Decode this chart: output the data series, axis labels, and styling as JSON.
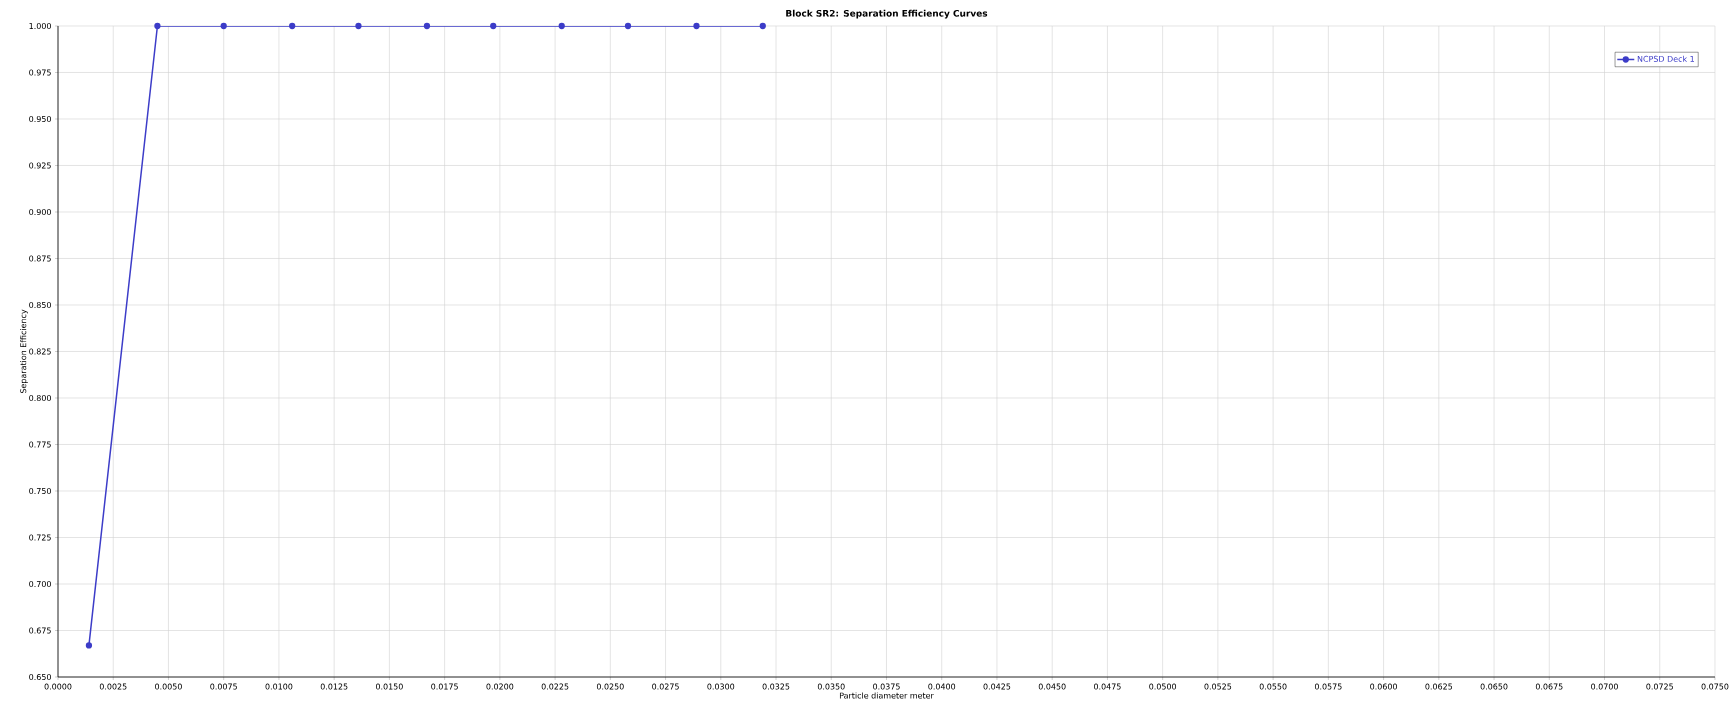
{
  "chart_data": {
    "type": "line",
    "title": "Block SR2: Separation Efficiency Curves",
    "xlabel": "Particle diameter meter",
    "ylabel": "Separation Efficiency",
    "x": [
      0.0014,
      0.0045,
      0.0075,
      0.0106,
      0.0136,
      0.0167,
      0.0197,
      0.0228,
      0.0258,
      0.0289,
      0.0319
    ],
    "series": [
      {
        "name": "NCPSD Deck 1",
        "color": "#3c3cc8",
        "values": [
          0.667,
          1.0,
          1.0,
          1.0,
          1.0,
          1.0,
          1.0,
          1.0,
          1.0,
          1.0,
          1.0
        ]
      }
    ],
    "xlim": [
      0,
      0.075
    ],
    "ylim": [
      0.65,
      1.0
    ],
    "xticks": [
      {
        "value": 0,
        "label": "0.0000"
      },
      {
        "value": 0.0025,
        "label": "0.0025"
      },
      {
        "value": 0.005,
        "label": "0.0050"
      },
      {
        "value": 0.0075,
        "label": "0.0075"
      },
      {
        "value": 0.01,
        "label": "0.0100"
      },
      {
        "value": 0.0125,
        "label": "0.0125"
      },
      {
        "value": 0.015,
        "label": "0.0150"
      },
      {
        "value": 0.0175,
        "label": "0.0175"
      },
      {
        "value": 0.02,
        "label": "0.0200"
      },
      {
        "value": 0.0225,
        "label": "0.0225"
      },
      {
        "value": 0.025,
        "label": "0.0250"
      },
      {
        "value": 0.0275,
        "label": "0.0275"
      },
      {
        "value": 0.03,
        "label": "0.0300"
      },
      {
        "value": 0.0325,
        "label": "0.0325"
      },
      {
        "value": 0.035,
        "label": "0.0350"
      },
      {
        "value": 0.0375,
        "label": "0.0375"
      },
      {
        "value": 0.04,
        "label": "0.0400"
      },
      {
        "value": 0.0425,
        "label": "0.0425"
      },
      {
        "value": 0.045,
        "label": "0.0450"
      },
      {
        "value": 0.0475,
        "label": "0.0475"
      },
      {
        "value": 0.05,
        "label": "0.0500"
      },
      {
        "value": 0.0525,
        "label": "0.0525"
      },
      {
        "value": 0.055,
        "label": "0.0550"
      },
      {
        "value": 0.0575,
        "label": "0.0575"
      },
      {
        "value": 0.06,
        "label": "0.0600"
      },
      {
        "value": 0.0625,
        "label": "0.0625"
      },
      {
        "value": 0.065,
        "label": "0.0650"
      },
      {
        "value": 0.0675,
        "label": "0.0675"
      },
      {
        "value": 0.07,
        "label": "0.0700"
      },
      {
        "value": 0.0725,
        "label": "0.0725"
      },
      {
        "value": 0.075,
        "label": "0.0750"
      }
    ],
    "yticks": [
      {
        "value": 0.65,
        "label": "0.650"
      },
      {
        "value": 0.675,
        "label": "0.675"
      },
      {
        "value": 0.7,
        "label": "0.700"
      },
      {
        "value": 0.725,
        "label": "0.725"
      },
      {
        "value": 0.75,
        "label": "0.750"
      },
      {
        "value": 0.775,
        "label": "0.775"
      },
      {
        "value": 0.8,
        "label": "0.800"
      },
      {
        "value": 0.825,
        "label": "0.825"
      },
      {
        "value": 0.85,
        "label": "0.850"
      },
      {
        "value": 0.875,
        "label": "0.875"
      },
      {
        "value": 0.9,
        "label": "0.900"
      },
      {
        "value": 0.925,
        "label": "0.925"
      },
      {
        "value": 0.95,
        "label": "0.950"
      },
      {
        "value": 0.975,
        "label": "0.975"
      },
      {
        "value": 1.0,
        "label": "1.000"
      }
    ],
    "grid": true,
    "legend": "top right",
    "marker": "circle",
    "line_style": "solid"
  }
}
